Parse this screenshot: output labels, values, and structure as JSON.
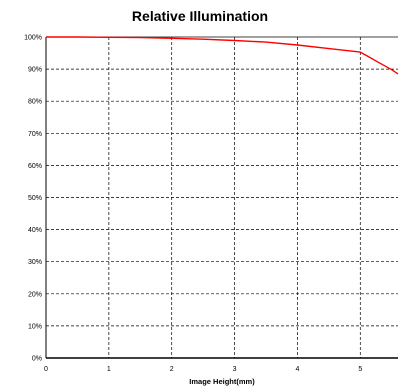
{
  "chart_data": {
    "type": "line",
    "title": "Relative Illumination",
    "xlabel": "Image Height(mm)",
    "ylabel": "",
    "xlim": [
      0,
      5.6
    ],
    "ylim": [
      0,
      100
    ],
    "x_ticks": [
      0,
      1,
      2,
      3,
      4,
      5
    ],
    "y_ticks": [
      0,
      10,
      20,
      30,
      40,
      50,
      60,
      70,
      80,
      90,
      100
    ],
    "y_tick_suffix": "%",
    "grid": true,
    "line_color": "#ff0000",
    "series": [
      {
        "x": [
          0,
          0.5,
          1.0,
          1.5,
          2.0,
          2.5,
          3.0,
          3.5,
          4.0,
          4.5,
          5.0,
          5.1,
          5.3,
          5.5,
          5.6
        ],
        "y": [
          100,
          100,
          99.9,
          99.8,
          99.6,
          99.3,
          98.9,
          98.4,
          97.5,
          96.4,
          95.3,
          94.2,
          92.0,
          89.8,
          88.5
        ]
      }
    ]
  }
}
